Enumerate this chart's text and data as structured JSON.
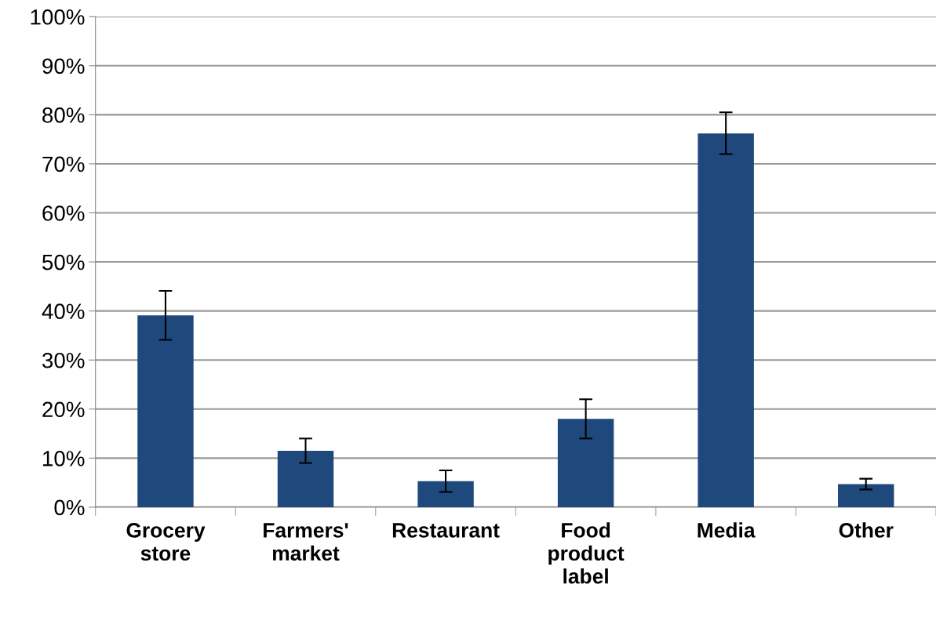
{
  "chart_data": {
    "type": "bar",
    "categories": [
      "Grocery\nstore",
      "Farmers'\nmarket",
      "Restaurant",
      "Food\nproduct\nlabel",
      "Media",
      "Other"
    ],
    "values": [
      39.1,
      11.5,
      5.3,
      18,
      76.2,
      4.7
    ],
    "errors": [
      [
        34.1,
        44.1
      ],
      [
        9,
        14
      ],
      [
        3.1,
        7.5
      ],
      [
        14,
        22
      ],
      [
        72,
        80.5
      ],
      [
        3.6,
        5.8
      ]
    ],
    "color": "#1f497d",
    "ylim": [
      0,
      100
    ],
    "yticks": [
      {
        "value": 0,
        "label": "0%"
      },
      {
        "value": 10,
        "label": "10%"
      },
      {
        "value": 20,
        "label": "20%"
      },
      {
        "value": 30,
        "label": "30%"
      },
      {
        "value": 40,
        "label": "40%"
      },
      {
        "value": 50,
        "label": "50%"
      },
      {
        "value": 60,
        "label": "60%"
      },
      {
        "value": 70,
        "label": "70%"
      },
      {
        "value": 80,
        "label": "80%"
      },
      {
        "value": 90,
        "label": "90%"
      },
      {
        "value": 100,
        "label": "100%"
      }
    ],
    "grid": "y"
  }
}
